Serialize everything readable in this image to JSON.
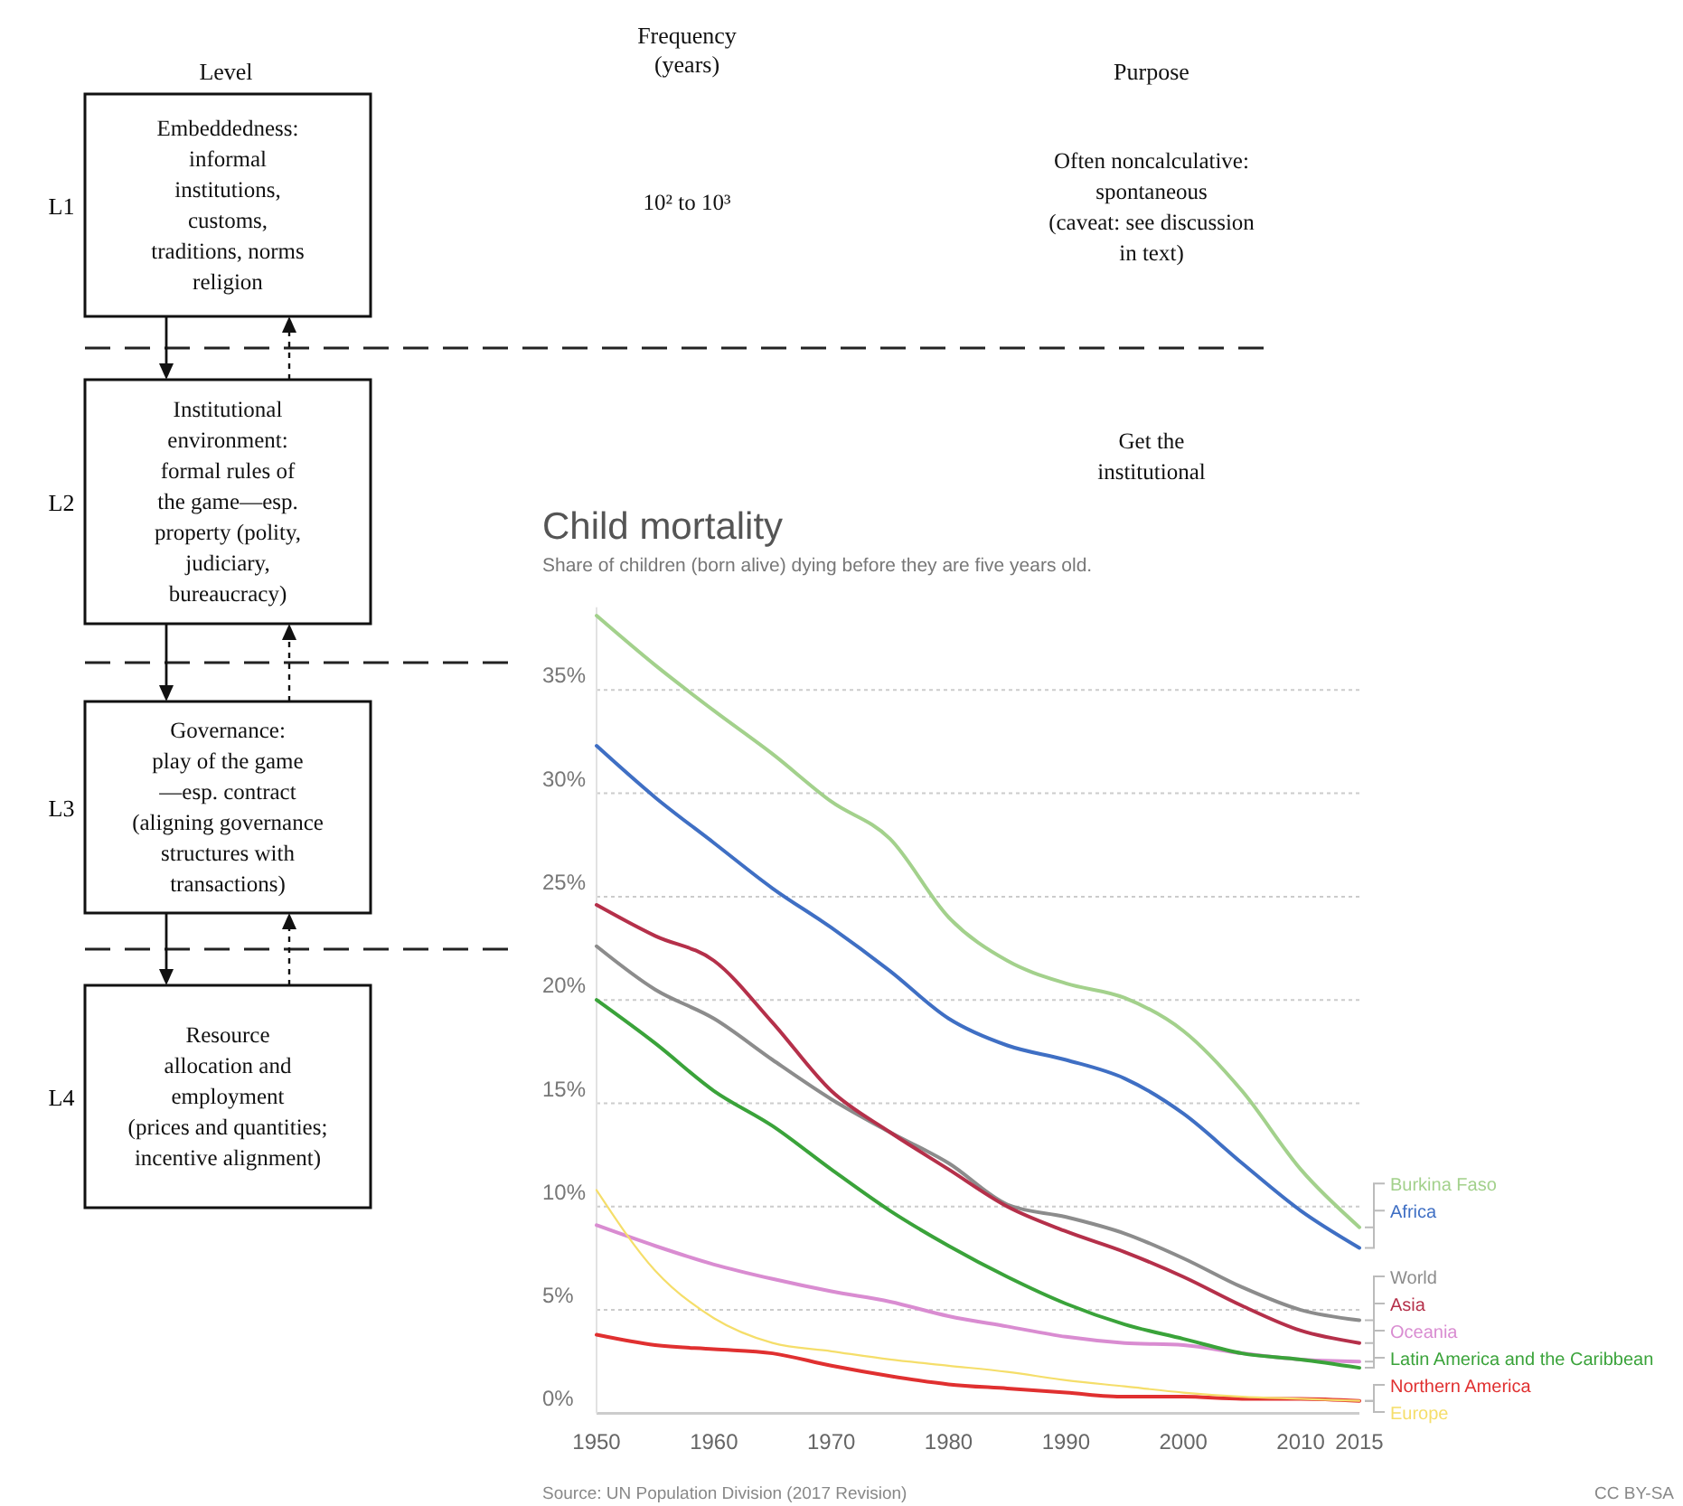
{
  "chart_data": [
    {
      "type": "other",
      "categories": [
        "L1",
        "L2",
        "L3",
        "L4"
      ],
      "annotations": [
        "Level",
        "Frequency\n(years)",
        "Purpose",
        "Embeddedness:\ninformal\ninstitutions,\ncustoms,\ntraditions, norms\nreligion",
        "Institutional\nenvironment:\nformal rules of\nthe game—esp.\nproperty (polity,\njudiciary,\nbureaucracy)",
        "Governance:\nplay of the game\n—esp. contract\n(aligning governance\nstructures with\ntransactions)",
        "Resource\nallocation and\nemployment\n(prices and quantities;\nincentive alignment)",
        "10² to 10³",
        "Often noncalculative:\nspontaneous\n(caveat: see discussion\nin text)",
        "Get the\ninstitutional"
      ]
    },
    {
      "type": "line",
      "title": "Child mortality",
      "subtitle": "Share of children (born alive) dying before they are five years old.",
      "x": [
        1950,
        1955,
        1960,
        1965,
        1970,
        1975,
        1980,
        1985,
        1990,
        1995,
        2000,
        2005,
        2010,
        2015
      ],
      "xlim": [
        1950,
        2015
      ],
      "xticks": [
        1950,
        1960,
        1970,
        1980,
        1990,
        2000,
        2010,
        2015
      ],
      "ylim": [
        0,
        39
      ],
      "yticks": [
        {
          "value": 0,
          "label": "0%"
        },
        {
          "value": 5,
          "label": "5%"
        },
        {
          "value": 10,
          "label": "10%"
        },
        {
          "value": 15,
          "label": "15%"
        },
        {
          "value": 20,
          "label": "20%"
        },
        {
          "value": 25,
          "label": "25%"
        },
        {
          "value": 30,
          "label": "30%"
        },
        {
          "value": 35,
          "label": "35%"
        }
      ],
      "grid": "y",
      "series": [
        {
          "name": "Burkina Faso",
          "color": "#a3d18c",
          "values": [
            38.6,
            36.2,
            34.0,
            31.9,
            29.6,
            27.8,
            24.0,
            21.9,
            20.8,
            20.1,
            18.5,
            15.6,
            11.8,
            9.0
          ]
        },
        {
          "name": "Africa",
          "color": "#3f6fc4",
          "values": [
            32.3,
            29.8,
            27.6,
            25.4,
            23.5,
            21.4,
            19.1,
            17.8,
            17.1,
            16.2,
            14.5,
            12.1,
            9.8,
            8.0
          ]
        },
        {
          "name": "World",
          "color": "#8c8c8c",
          "values": [
            22.6,
            20.5,
            19.1,
            17.1,
            15.2,
            13.6,
            12.1,
            10.1,
            9.5,
            8.7,
            7.5,
            6.1,
            5.0,
            4.5
          ]
        },
        {
          "name": "Asia",
          "color": "#b5304a",
          "values": [
            24.6,
            23.1,
            21.9,
            18.9,
            15.6,
            13.6,
            11.8,
            10.0,
            8.8,
            7.8,
            6.6,
            5.2,
            4.0,
            3.4
          ]
        },
        {
          "name": "Oceania",
          "color": "#d98cd1",
          "values": [
            9.1,
            8.1,
            7.2,
            6.5,
            5.9,
            5.4,
            4.7,
            4.2,
            3.7,
            3.4,
            3.3,
            2.9,
            2.6,
            2.5
          ]
        },
        {
          "name": "Latin America and the Caribbean",
          "color": "#3aa33a",
          "values": [
            20.0,
            17.9,
            15.6,
            13.9,
            11.8,
            9.8,
            8.1,
            6.6,
            5.3,
            4.3,
            3.6,
            2.9,
            2.6,
            2.2
          ]
        },
        {
          "name": "Northern America",
          "color": "#e03030",
          "values": [
            3.8,
            3.3,
            3.1,
            2.9,
            2.3,
            1.8,
            1.4,
            1.2,
            1.0,
            0.8,
            0.8,
            0.7,
            0.7,
            0.6
          ]
        },
        {
          "name": "Europe",
          "color": "#f5de6a",
          "values": [
            10.8,
            6.9,
            4.6,
            3.4,
            3.0,
            2.6,
            2.3,
            2.0,
            1.6,
            1.3,
            1.0,
            0.8,
            0.7,
            0.6
          ]
        }
      ],
      "annotations": [
        "Source: UN Population Division (2017 Revision)",
        "CC BY-SA"
      ]
    }
  ]
}
